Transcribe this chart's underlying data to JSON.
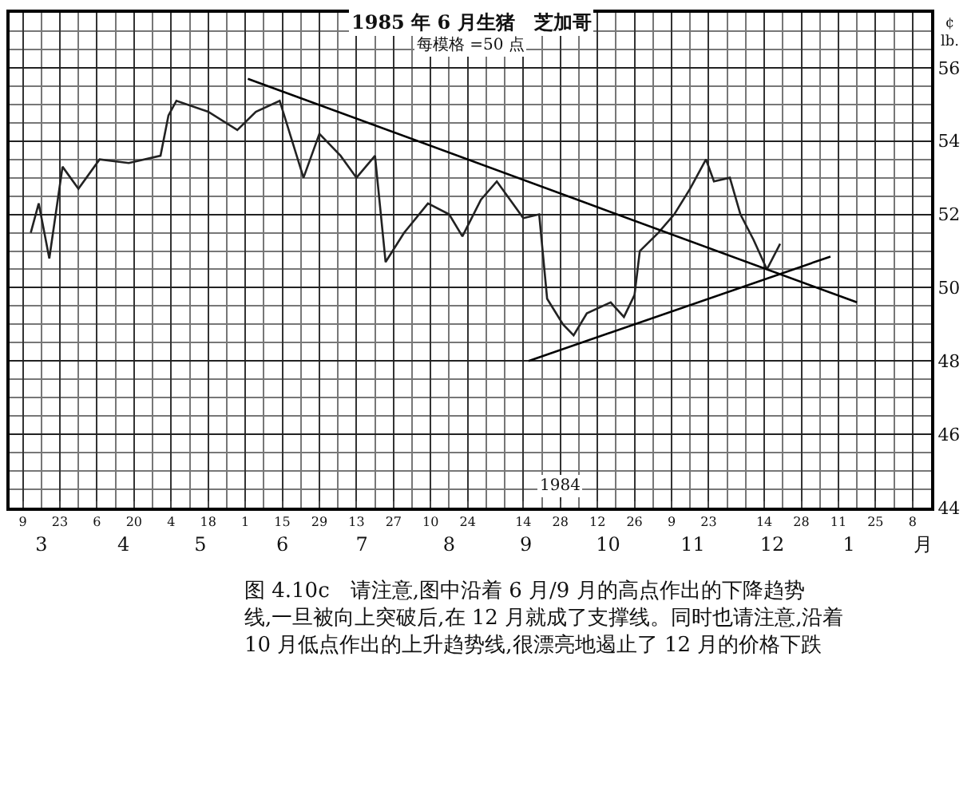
{
  "chart_data": {
    "type": "line",
    "title": "1985 年 6 月生猪　芝加哥",
    "subtitle": "每模格 =50 点",
    "ylabel": "¢\nlb.",
    "series": [
      {
        "color": "#222222",
        "line_style": "solid",
        "x": [
          "1984-03-12",
          "1984-03-15",
          "1984-03-19",
          "1984-03-24",
          "1984-03-30",
          "1984-04-07",
          "1984-04-18",
          "1984-04-30",
          "1984-05-03",
          "1984-05-06",
          "1984-05-18",
          "1984-05-29",
          "1984-06-05",
          "1984-06-14",
          "1984-06-23",
          "1984-06-29",
          "1984-07-07",
          "1984-07-13",
          "1984-07-20",
          "1984-07-24",
          "1984-07-31",
          "1984-08-09",
          "1984-08-17",
          "1984-08-22",
          "1984-08-29",
          "1984-09-04",
          "1984-09-14",
          "1984-09-20",
          "1984-09-23",
          "1984-09-29",
          "1984-10-03",
          "1984-10-08",
          "1984-10-17",
          "1984-10-22",
          "1984-10-26",
          "1984-10-28",
          "1984-11-04",
          "1984-11-10",
          "1984-11-16",
          "1984-11-22",
          "1984-11-25",
          "1984-12-01",
          "1984-12-05",
          "1984-12-10",
          "1984-12-15",
          "1984-12-20"
        ],
        "values": [
          51.5,
          52.3,
          50.8,
          53.3,
          52.7,
          53.5,
          53.4,
          53.6,
          54.7,
          55.1,
          54.8,
          54.3,
          54.8,
          55.1,
          53.0,
          54.2,
          53.6,
          53.0,
          53.6,
          50.7,
          51.5,
          52.3,
          52.0,
          51.4,
          52.4,
          52.9,
          51.9,
          52.0,
          49.7,
          49.0,
          48.7,
          49.3,
          49.6,
          49.2,
          49.8,
          51.0,
          51.5,
          52.0,
          52.7,
          53.5,
          52.9,
          53.0,
          52.0,
          51.3,
          50.5,
          51.2
        ]
      },
      {
        "type": "line",
        "color": "#000000",
        "line_style": "solid",
        "x": [
          "1984-06-02",
          "1985-01-18"
        ],
        "values": [
          55.7,
          49.6
        ]
      },
      {
        "type": "line",
        "color": "#000000",
        "line_style": "solid",
        "x": [
          "1984-09-16",
          "1985-01-08"
        ],
        "values": [
          48.0,
          50.85
        ]
      }
    ],
    "xlim": [
      "1984-03-04",
      "1985-02-15"
    ],
    "xticks": [
      {
        "value": "1984-03-09",
        "label": "9"
      },
      {
        "value": "1984-03-23",
        "label": "23"
      },
      {
        "value": "1984-04-06",
        "label": "6"
      },
      {
        "value": "1984-04-20",
        "label": "20"
      },
      {
        "value": "1984-05-04",
        "label": "4"
      },
      {
        "value": "1984-05-18",
        "label": "18"
      },
      {
        "value": "1984-06-01",
        "label": "1"
      },
      {
        "value": "1984-06-15",
        "label": "15"
      },
      {
        "value": "1984-06-29",
        "label": "29"
      },
      {
        "value": "1984-07-13",
        "label": "13"
      },
      {
        "value": "1984-07-27",
        "label": "27"
      },
      {
        "value": "1984-08-10",
        "label": "10"
      },
      {
        "value": "1984-08-24",
        "label": "24"
      },
      {
        "value": "1984-09-14",
        "label": "14"
      },
      {
        "value": "1984-09-28",
        "label": "28"
      },
      {
        "value": "1984-10-12",
        "label": "12"
      },
      {
        "value": "1984-10-26",
        "label": "26"
      },
      {
        "value": "1984-11-09",
        "label": "9"
      },
      {
        "value": "1984-11-23",
        "label": "23"
      },
      {
        "value": "1984-12-14",
        "label": "14"
      },
      {
        "value": "1984-12-28",
        "label": "28"
      },
      {
        "value": "1985-01-11",
        "label": "11"
      },
      {
        "value": "1985-01-25",
        "label": "25"
      },
      {
        "value": "1985-02-08",
        "label": "8"
      }
    ],
    "x2lim": [
      "1984-03-04",
      "1985-02-15"
    ],
    "x2ticks": [
      {
        "value": "1984-03-16",
        "label": "3"
      },
      {
        "value": "1984-04-16",
        "label": "4"
      },
      {
        "value": "1984-05-15",
        "label": "5"
      },
      {
        "value": "1984-06-15",
        "label": "6"
      },
      {
        "value": "1984-07-15",
        "label": "7"
      },
      {
        "value": "1984-08-17",
        "label": "8"
      },
      {
        "value": "1984-09-15",
        "label": "9"
      },
      {
        "value": "1984-10-16",
        "label": "10"
      },
      {
        "value": "1984-11-17",
        "label": "11"
      },
      {
        "value": "1984-12-17",
        "label": "12"
      },
      {
        "value": "1985-01-15",
        "label": "1"
      },
      {
        "value": "1985-02-12",
        "label": "月"
      }
    ],
    "ylim": [
      44,
      57.5
    ],
    "yticks": [
      44,
      46,
      48,
      50,
      52,
      54,
      56
    ],
    "grid": true,
    "marker": "none",
    "annotations": [
      {
        "text": "1984",
        "x": "1984-09-28",
        "y": 44.6
      },
      "图 4.10c　请注意,图中沿着 6 月/9 月的高点作出的下降趋势线,一旦被向上突破后,在 12 月就成了支撑线。同时也请注意,沿着 10 月低点作出的上升趋势线,很漂亮地遏止了 12 月的价格下跌"
    ]
  }
}
